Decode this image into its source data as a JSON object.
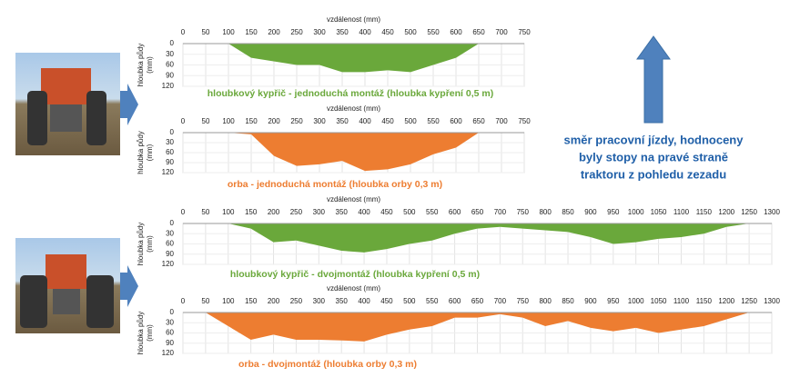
{
  "chart_data": [
    {
      "type": "area",
      "title": "hloubkový kypřič - jednoduchá montáž (hloubka kypření 0,5 m)",
      "xlabel": "vzdálenost (mm)",
      "ylabel": [
        "hloubka půdy",
        "(mm)"
      ],
      "color": "#6aa83b",
      "x": [
        100,
        150,
        250,
        300,
        350,
        400,
        450,
        500,
        600,
        650
      ],
      "values": [
        0,
        40,
        60,
        60,
        80,
        80,
        75,
        80,
        40,
        0
      ],
      "xlim": [
        0,
        750
      ],
      "xticks": [
        0,
        50,
        100,
        150,
        200,
        250,
        300,
        350,
        400,
        450,
        500,
        550,
        600,
        650,
        700,
        750
      ],
      "ylim": [
        0,
        120
      ],
      "yticks": [
        0,
        30,
        60,
        90,
        120
      ],
      "invert_y": true,
      "grid": true
    },
    {
      "type": "area",
      "title": "orba - jednoduchá montáž (hloubka orby 0,3 m)",
      "xlabel": "vzdálenost (mm)",
      "ylabel": [
        "hloubka půdy",
        "(mm)"
      ],
      "color": "#ed7d31",
      "x": [
        100,
        150,
        200,
        250,
        300,
        350,
        400,
        450,
        500,
        550,
        600,
        650
      ],
      "values": [
        0,
        5,
        70,
        100,
        95,
        85,
        115,
        110,
        95,
        65,
        45,
        0
      ],
      "xlim": [
        0,
        750
      ],
      "xticks": [
        0,
        50,
        100,
        150,
        200,
        250,
        300,
        350,
        400,
        450,
        500,
        550,
        600,
        650,
        700,
        750
      ],
      "ylim": [
        0,
        120
      ],
      "yticks": [
        0,
        30,
        60,
        90,
        120
      ],
      "invert_y": true,
      "grid": true
    },
    {
      "type": "area",
      "title": "hloubkový kypřič - dvojmontáž (hloubka kypření 0,5 m)",
      "xlabel": "vzdálenost (mm)",
      "ylabel": [
        "hloubka půdy",
        "(mm)"
      ],
      "color": "#6aa83b",
      "x": [
        100,
        150,
        200,
        250,
        300,
        350,
        400,
        450,
        500,
        550,
        600,
        650,
        700,
        750,
        800,
        850,
        900,
        950,
        1000,
        1050,
        1100,
        1150,
        1200,
        1250
      ],
      "values": [
        0,
        15,
        55,
        50,
        65,
        80,
        85,
        75,
        60,
        50,
        30,
        15,
        10,
        15,
        20,
        25,
        40,
        60,
        55,
        45,
        40,
        30,
        10,
        0
      ],
      "xlim": [
        0,
        1300
      ],
      "xticks": [
        0,
        50,
        100,
        150,
        200,
        250,
        300,
        350,
        400,
        450,
        500,
        550,
        600,
        650,
        700,
        750,
        800,
        850,
        900,
        950,
        1000,
        1050,
        1100,
        1150,
        1200,
        1250,
        1300
      ],
      "ylim": [
        0,
        120
      ],
      "yticks": [
        0,
        30,
        60,
        90,
        120
      ],
      "invert_y": true,
      "grid": true
    },
    {
      "type": "area",
      "title": "orba - dvojmontáž (hloubka orby 0,3 m)",
      "xlabel": "vzdálenost (mm)",
      "ylabel": [
        "hloubka půdy",
        "(mm)"
      ],
      "color": "#ed7d31",
      "x": [
        50,
        100,
        150,
        200,
        250,
        300,
        350,
        400,
        450,
        500,
        550,
        600,
        650,
        700,
        750,
        800,
        850,
        900,
        950,
        1000,
        1050,
        1100,
        1150,
        1200,
        1250
      ],
      "values": [
        0,
        40,
        80,
        65,
        80,
        80,
        82,
        85,
        65,
        50,
        40,
        15,
        15,
        5,
        15,
        40,
        25,
        45,
        55,
        45,
        60,
        50,
        40,
        20,
        0
      ],
      "xlim": [
        0,
        1300
      ],
      "xticks": [
        0,
        50,
        100,
        150,
        200,
        250,
        300,
        350,
        400,
        450,
        500,
        550,
        600,
        650,
        700,
        750,
        800,
        850,
        900,
        950,
        1000,
        1050,
        1100,
        1150,
        1200,
        1250,
        1300
      ],
      "ylim": [
        0,
        120
      ],
      "yticks": [
        0,
        30,
        60,
        90,
        120
      ],
      "invert_y": true,
      "grid": true
    }
  ],
  "annotation": [
    "směr pracovní jízdy, hodnoceny",
    "byly stopy na pravé straně",
    "traktoru z pohledu zezadu"
  ]
}
